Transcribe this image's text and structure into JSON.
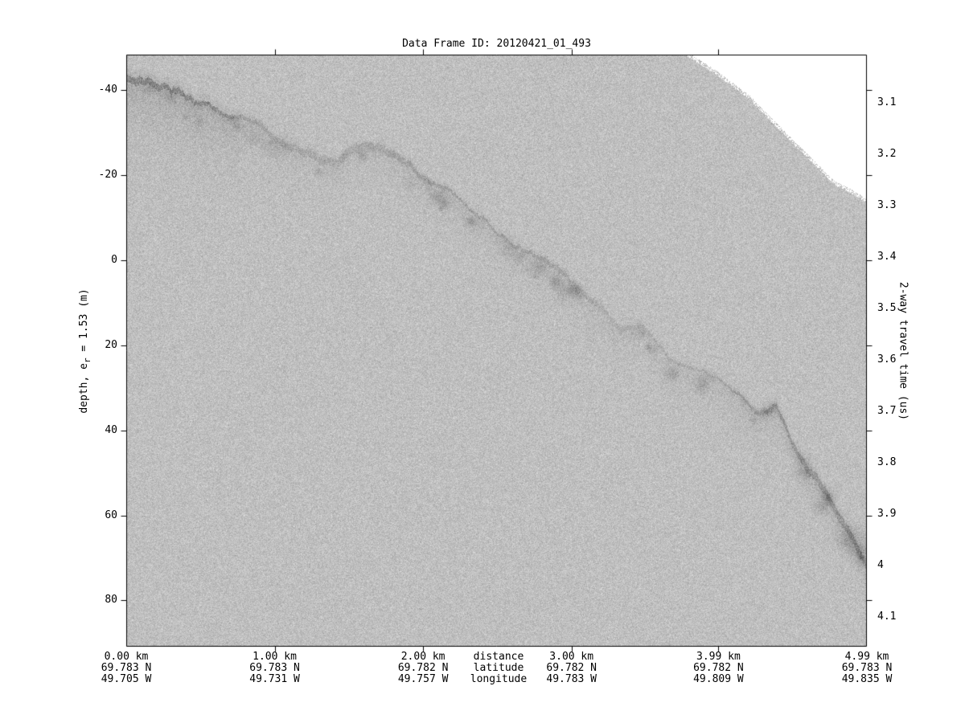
{
  "title": "Data Frame ID: 20120421_01_493",
  "colors": {
    "background": "#ffffff",
    "echogram_mean_gray": "#bfbfbf",
    "no_data_region": "#ffffff",
    "ink": "#000000"
  },
  "axes": {
    "left": {
      "label_pre": "depth, e",
      "label_sub": "r",
      "label_post": " = 1.53 (m)",
      "tick_labels": [
        "-40",
        "-20",
        "0",
        "20",
        "40",
        "60",
        "80"
      ],
      "tick_values": [
        -40,
        -20,
        0,
        20,
        40,
        60,
        80
      ]
    },
    "right": {
      "label": "2-way travel time (us)",
      "tick_labels": [
        "3.1",
        "3.2",
        "3.3",
        "3.4",
        "3.5",
        "3.6",
        "3.7",
        "3.8",
        "3.9",
        "4",
        "4.1"
      ],
      "tick_values": [
        3.1,
        3.2,
        3.3,
        3.4,
        3.5,
        3.6,
        3.7,
        3.8,
        3.9,
        4.0,
        4.1
      ]
    },
    "bottom": {
      "row_headers": [
        "distance",
        "latitude",
        "longitude"
      ],
      "columns": [
        {
          "km": 0,
          "distance": "0.00 km",
          "latitude": "69.783 N",
          "longitude": "49.705 W"
        },
        {
          "km": 1,
          "distance": "1.00 km",
          "latitude": "69.783 N",
          "longitude": "49.731 W"
        },
        {
          "km": 2,
          "distance": "2.00 km",
          "latitude": "69.782 N",
          "longitude": "49.757 W"
        },
        {
          "km": 3,
          "distance": "3.00 km",
          "latitude": "69.782 N",
          "longitude": "49.783 W"
        },
        {
          "km": 3.99,
          "distance": "3.99 km",
          "latitude": "69.782 N",
          "longitude": "49.809 W"
        },
        {
          "km": 4.99,
          "distance": "4.99 km",
          "latitude": "69.783 N",
          "longitude": "49.835 W"
        }
      ],
      "tick_kms": [
        1,
        2,
        3,
        3.99
      ]
    }
  },
  "chart_data": {
    "type": "heatmap",
    "title": "Data Frame ID: 20120421_01_493",
    "description": "Grayscale radar echogram with speckle noise; dark rough surface-return band descends left to right; white no-data wedge in upper right corner.",
    "x_axis": {
      "label": "distance",
      "units": "km",
      "range": [
        0,
        4.99
      ]
    },
    "y_axis_left": {
      "label": "depth, e_r = 1.53 (m)",
      "range": [
        -48.4,
        90.9
      ],
      "ticks": [
        -40,
        -20,
        0,
        20,
        40,
        60,
        80
      ]
    },
    "y_axis_right": {
      "label": "2-way travel time (us)",
      "range": [
        3.01,
        4.16
      ],
      "ticks": [
        3.1,
        3.2,
        3.3,
        3.4,
        3.5,
        3.6,
        3.7,
        3.8,
        3.9,
        4.0,
        4.1
      ]
    },
    "grid": false,
    "legend": false,
    "surface_profile": {
      "distance_km": [
        0,
        0.12,
        0.29,
        0.58,
        0.83,
        1.01,
        1.18,
        1.42,
        1.53,
        1.61,
        1.7,
        1.95,
        2.22,
        2.44,
        2.62,
        2.85,
        2.94,
        3.16,
        3.32,
        3.47,
        3.65,
        3.9,
        4.13,
        4.24,
        4.37,
        4.51,
        4.67,
        4.83,
        4.91,
        4.99
      ],
      "depth_m": [
        -43.4,
        -42.9,
        -41.0,
        -36.6,
        -32.8,
        -29.6,
        -26.7,
        -24.1,
        -27.3,
        -29.2,
        -27.7,
        -21.6,
        -15.4,
        -8.9,
        -4.2,
        0.6,
        3.4,
        8.3,
        15.0,
        14.4,
        22.0,
        26.4,
        30.9,
        35.3,
        33.8,
        44.2,
        51.8,
        60.0,
        65.3,
        69.4
      ]
    },
    "data_start_boundary": {
      "distance_km": [
        3.78,
        3.97,
        4.19,
        4.35,
        4.51,
        4.65,
        4.78,
        4.89,
        4.99
      ],
      "depth_m": [
        -48.6,
        -44.4,
        -38.7,
        -33.0,
        -27.3,
        -22.6,
        -18.1,
        -16.3,
        -14.0
      ]
    },
    "geo_ticks": [
      {
        "distance_km": 0,
        "lat": "69.783 N",
        "lon": "49.705 W"
      },
      {
        "distance_km": 1,
        "lat": "69.783 N",
        "lon": "49.731 W"
      },
      {
        "distance_km": 2,
        "lat": "69.782 N",
        "lon": "49.757 W"
      },
      {
        "distance_km": 3,
        "lat": "69.782 N",
        "lon": "49.783 W"
      },
      {
        "distance_km": 3.99,
        "lat": "69.782 N",
        "lon": "49.809 W"
      },
      {
        "distance_km": 4.99,
        "lat": "69.783 N",
        "lon": "49.835 W"
      }
    ]
  }
}
